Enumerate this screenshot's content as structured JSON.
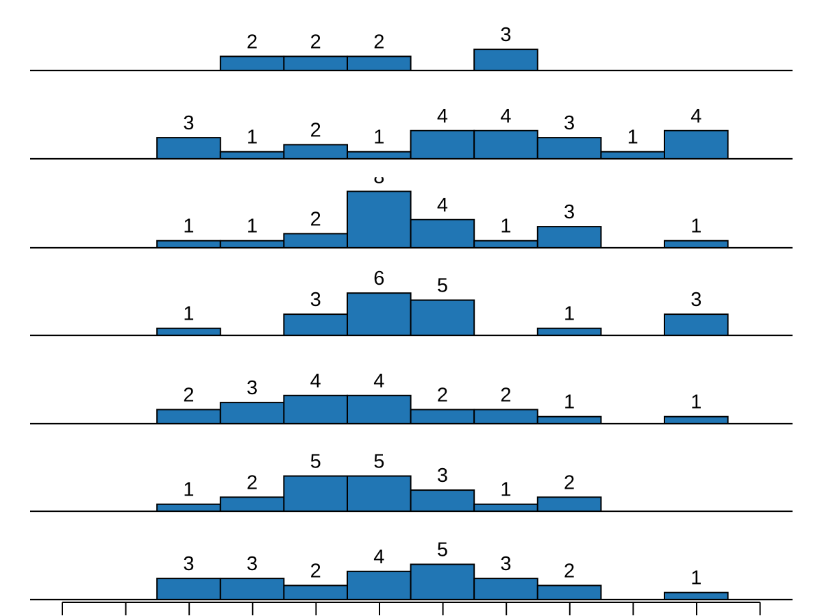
{
  "chart_data": {
    "type": "bar",
    "description_note": "",
    "bin_count": 12,
    "x_ticks": 12,
    "colors": {
      "bar_fill": "#2176b4",
      "bar_stroke": "#000000",
      "baseline": "#000000",
      "label": "#000000"
    },
    "panels": [
      {
        "name": "panel-1",
        "values": [
          0,
          0,
          0,
          2,
          2,
          2,
          0,
          3,
          0,
          0,
          0,
          0
        ]
      },
      {
        "name": "panel-2",
        "values": [
          0,
          0,
          3,
          1,
          2,
          1,
          4,
          4,
          3,
          1,
          4,
          0
        ]
      },
      {
        "name": "panel-3",
        "values": [
          0,
          0,
          1,
          1,
          2,
          8,
          4,
          1,
          3,
          0,
          1,
          0
        ]
      },
      {
        "name": "panel-4",
        "values": [
          0,
          0,
          1,
          0,
          3,
          6,
          5,
          0,
          1,
          0,
          3,
          0
        ]
      },
      {
        "name": "panel-5",
        "values": [
          0,
          0,
          2,
          3,
          4,
          4,
          2,
          2,
          1,
          0,
          1,
          0
        ]
      },
      {
        "name": "panel-6",
        "values": [
          0,
          0,
          1,
          2,
          5,
          5,
          3,
          1,
          2,
          0,
          0,
          0
        ]
      },
      {
        "name": "panel-7",
        "values": [
          0,
          0,
          3,
          3,
          2,
          4,
          5,
          3,
          2,
          0,
          1,
          0
        ]
      }
    ]
  }
}
